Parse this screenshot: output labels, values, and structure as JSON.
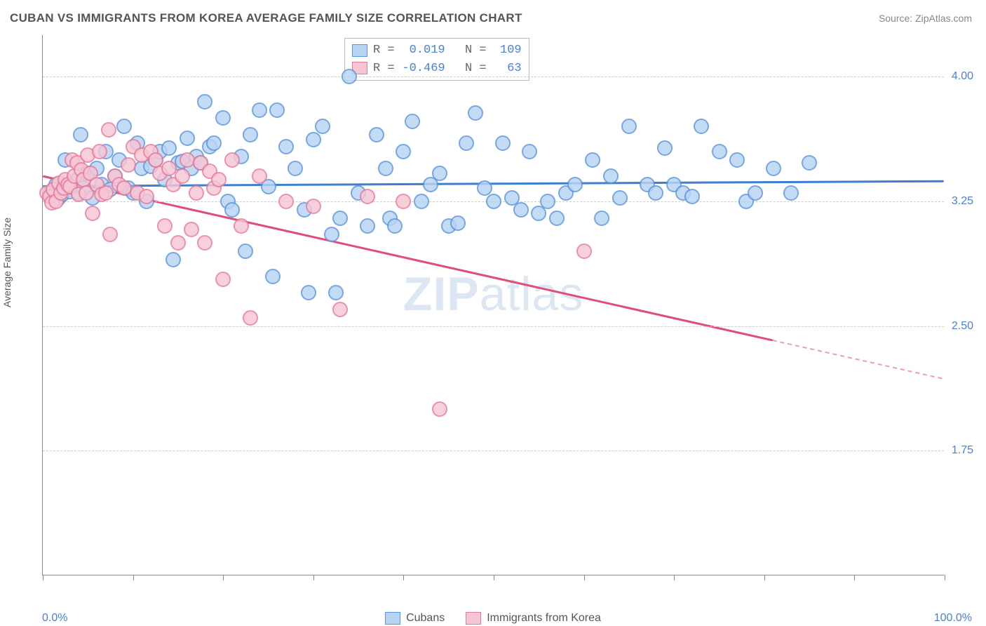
{
  "title": "CUBAN VS IMMIGRANTS FROM KOREA AVERAGE FAMILY SIZE CORRELATION CHART",
  "source": "Source: ZipAtlas.com",
  "ylabel": "Average Family Size",
  "watermark_bold": "ZIP",
  "watermark_light": "atlas",
  "xaxis": {
    "min": 0,
    "max": 100,
    "label_left": "0.0%",
    "label_right": "100.0%",
    "tick_positions": [
      0,
      10,
      20,
      30,
      40,
      50,
      60,
      70,
      80,
      90,
      100
    ]
  },
  "yaxis": {
    "min": 1.0,
    "max": 4.25,
    "ticks": [
      1.75,
      2.5,
      3.25,
      4.0
    ],
    "tick_labels": [
      "1.75",
      "2.50",
      "3.25",
      "4.00"
    ]
  },
  "grid_color": "#cccccc",
  "axis_color": "#888888",
  "tick_label_color": "#4a7fd8",
  "series": [
    {
      "name": "Cubans",
      "fill": "#b8d4f5",
      "stroke": "#5a94dd",
      "line_color": "#3f7fd0",
      "marker_radius": 11,
      "stroke_width": 2,
      "trend_y_at_x0": 3.34,
      "trend_y_at_x100": 3.37,
      "solid_until_x": 100,
      "R": "0.019",
      "N": "109",
      "points": [
        [
          0.8,
          3.3
        ],
        [
          1.0,
          3.28
        ],
        [
          1.2,
          3.32
        ],
        [
          1.5,
          3.35
        ],
        [
          1.8,
          3.27
        ],
        [
          2.0,
          3.33
        ],
        [
          2.2,
          3.29
        ],
        [
          2.5,
          3.5
        ],
        [
          3.0,
          3.31
        ],
        [
          3.2,
          3.34
        ],
        [
          3.5,
          3.36
        ],
        [
          3.8,
          3.38
        ],
        [
          4.0,
          3.3
        ],
        [
          4.2,
          3.65
        ],
        [
          4.5,
          3.33
        ],
        [
          5.0,
          3.42
        ],
        [
          5.5,
          3.27
        ],
        [
          6.0,
          3.45
        ],
        [
          6.5,
          3.35
        ],
        [
          7.0,
          3.55
        ],
        [
          7.5,
          3.32
        ],
        [
          8.0,
          3.4
        ],
        [
          8.5,
          3.5
        ],
        [
          9.0,
          3.7
        ],
        [
          9.5,
          3.33
        ],
        [
          10.0,
          3.3
        ],
        [
          10.5,
          3.6
        ],
        [
          11.0,
          3.45
        ],
        [
          11.5,
          3.25
        ],
        [
          12.0,
          3.46
        ],
        [
          12.5,
          3.5
        ],
        [
          13.0,
          3.55
        ],
        [
          13.5,
          3.38
        ],
        [
          14.0,
          3.57
        ],
        [
          14.5,
          2.9
        ],
        [
          15.0,
          3.48
        ],
        [
          15.5,
          3.49
        ],
        [
          16.0,
          3.63
        ],
        [
          16.5,
          3.45
        ],
        [
          17.0,
          3.52
        ],
        [
          17.5,
          3.48
        ],
        [
          18.0,
          3.85
        ],
        [
          18.5,
          3.58
        ],
        [
          19.0,
          3.6
        ],
        [
          20.0,
          3.75
        ],
        [
          20.5,
          3.25
        ],
        [
          21.0,
          3.2
        ],
        [
          22.0,
          3.52
        ],
        [
          22.5,
          2.95
        ],
        [
          23.0,
          3.65
        ],
        [
          24.0,
          3.8
        ],
        [
          25.0,
          3.34
        ],
        [
          25.5,
          2.8
        ],
        [
          26.0,
          3.8
        ],
        [
          27.0,
          3.58
        ],
        [
          28.0,
          3.45
        ],
        [
          29.0,
          3.2
        ],
        [
          29.5,
          2.7
        ],
        [
          30.0,
          3.62
        ],
        [
          31.0,
          3.7
        ],
        [
          32.0,
          3.05
        ],
        [
          32.5,
          2.7
        ],
        [
          33.0,
          3.15
        ],
        [
          34.0,
          4.0
        ],
        [
          35.0,
          3.3
        ],
        [
          36.0,
          3.1
        ],
        [
          37.0,
          3.65
        ],
        [
          38.0,
          3.45
        ],
        [
          38.5,
          3.15
        ],
        [
          39.0,
          3.1
        ],
        [
          40.0,
          3.55
        ],
        [
          41.0,
          3.73
        ],
        [
          42.0,
          3.25
        ],
        [
          43.0,
          3.35
        ],
        [
          44.0,
          3.42
        ],
        [
          45.0,
          3.1
        ],
        [
          46.0,
          3.12
        ],
        [
          47.0,
          3.6
        ],
        [
          48.0,
          3.78
        ],
        [
          49.0,
          3.33
        ],
        [
          50.0,
          3.25
        ],
        [
          51.0,
          3.6
        ],
        [
          52.0,
          3.27
        ],
        [
          53.0,
          3.2
        ],
        [
          54.0,
          3.55
        ],
        [
          55.0,
          3.18
        ],
        [
          56.0,
          3.25
        ],
        [
          57.0,
          3.15
        ],
        [
          58.0,
          3.3
        ],
        [
          59.0,
          3.35
        ],
        [
          61.0,
          3.5
        ],
        [
          62.0,
          3.15
        ],
        [
          63.0,
          3.4
        ],
        [
          64.0,
          3.27
        ],
        [
          65.0,
          3.7
        ],
        [
          67.0,
          3.35
        ],
        [
          68.0,
          3.3
        ],
        [
          69.0,
          3.57
        ],
        [
          70.0,
          3.35
        ],
        [
          71.0,
          3.3
        ],
        [
          72.0,
          3.28
        ],
        [
          73.0,
          3.7
        ],
        [
          75.0,
          3.55
        ],
        [
          77.0,
          3.5
        ],
        [
          78.0,
          3.25
        ],
        [
          79.0,
          3.3
        ],
        [
          81.0,
          3.45
        ],
        [
          83.0,
          3.3
        ],
        [
          85.0,
          3.48
        ]
      ]
    },
    {
      "name": "Immigrants from Korea",
      "fill": "#f7c6d5",
      "stroke": "#e67a9a",
      "line_color": "#e14d7b",
      "marker_radius": 11,
      "stroke_width": 2,
      "trend_y_at_x0": 3.4,
      "trend_y_at_x100": 2.18,
      "solid_until_x": 81,
      "R": "-0.469",
      "N": "63",
      "points": [
        [
          0.5,
          3.3
        ],
        [
          0.8,
          3.28
        ],
        [
          1.0,
          3.24
        ],
        [
          1.2,
          3.32
        ],
        [
          1.5,
          3.25
        ],
        [
          1.8,
          3.36
        ],
        [
          2.0,
          3.3
        ],
        [
          2.3,
          3.33
        ],
        [
          2.5,
          3.38
        ],
        [
          2.8,
          3.35
        ],
        [
          3.0,
          3.34
        ],
        [
          3.3,
          3.5
        ],
        [
          3.5,
          3.4
        ],
        [
          3.8,
          3.48
        ],
        [
          4.0,
          3.29
        ],
        [
          4.3,
          3.44
        ],
        [
          4.5,
          3.38
        ],
        [
          4.8,
          3.3
        ],
        [
          5.0,
          3.53
        ],
        [
          5.3,
          3.42
        ],
        [
          5.5,
          3.18
        ],
        [
          6.0,
          3.35
        ],
        [
          6.3,
          3.55
        ],
        [
          6.5,
          3.29
        ],
        [
          7.0,
          3.3
        ],
        [
          7.3,
          3.68
        ],
        [
          7.5,
          3.05
        ],
        [
          8.0,
          3.4
        ],
        [
          8.5,
          3.35
        ],
        [
          9.0,
          3.33
        ],
        [
          9.5,
          3.47
        ],
        [
          10.0,
          3.58
        ],
        [
          10.5,
          3.3
        ],
        [
          11.0,
          3.53
        ],
        [
          11.5,
          3.28
        ],
        [
          12.0,
          3.55
        ],
        [
          12.5,
          3.5
        ],
        [
          13.0,
          3.42
        ],
        [
          13.5,
          3.1
        ],
        [
          14.0,
          3.45
        ],
        [
          14.5,
          3.35
        ],
        [
          15.0,
          3.0
        ],
        [
          15.5,
          3.4
        ],
        [
          16.0,
          3.5
        ],
        [
          16.5,
          3.08
        ],
        [
          17.0,
          3.3
        ],
        [
          17.5,
          3.48
        ],
        [
          18.0,
          3.0
        ],
        [
          18.5,
          3.43
        ],
        [
          19.0,
          3.33
        ],
        [
          19.5,
          3.38
        ],
        [
          20.0,
          2.78
        ],
        [
          21.0,
          3.5
        ],
        [
          22.0,
          3.1
        ],
        [
          23.0,
          2.55
        ],
        [
          24.0,
          3.4
        ],
        [
          27.0,
          3.25
        ],
        [
          30.0,
          3.22
        ],
        [
          33.0,
          2.6
        ],
        [
          36.0,
          3.28
        ],
        [
          40.0,
          3.25
        ],
        [
          44.0,
          2.0
        ],
        [
          60.0,
          2.95
        ]
      ]
    }
  ],
  "legend": {
    "series1_label": "Cubans",
    "series2_label": "Immigrants from Korea"
  }
}
